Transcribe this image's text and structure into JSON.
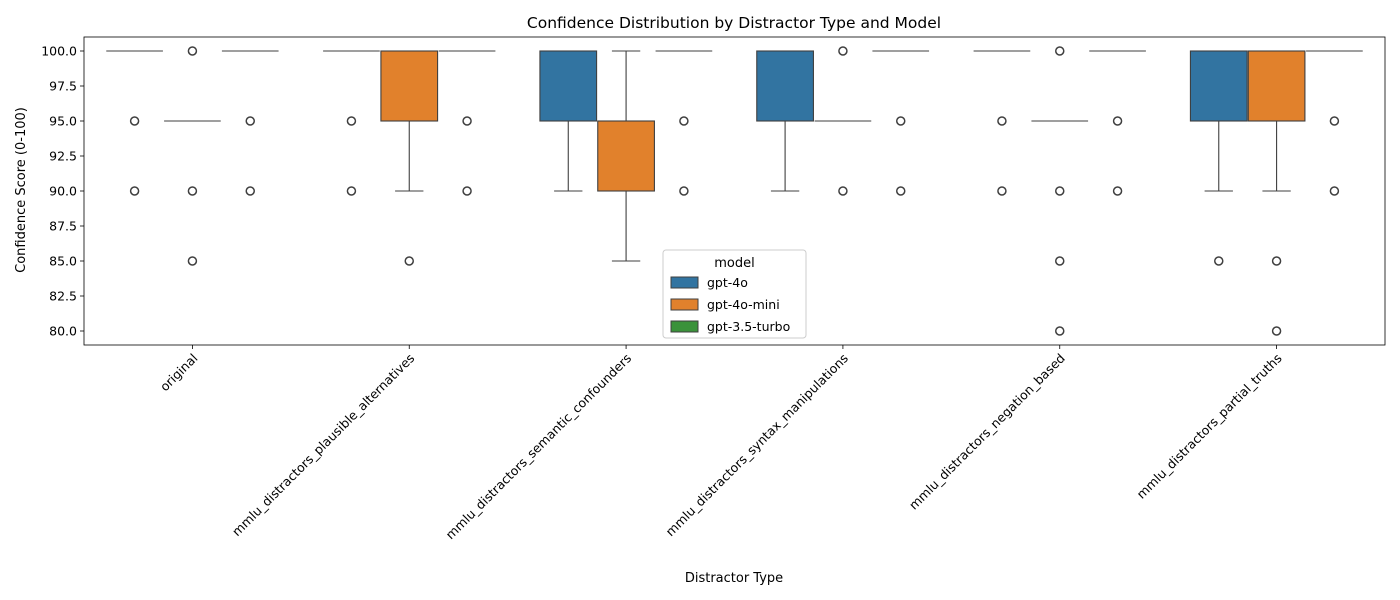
{
  "chart_data": {
    "type": "box",
    "title": "Confidence Distribution by Distractor Type and Model",
    "xlabel": "Distractor Type",
    "ylabel": "Confidence Score (0-100)",
    "ylim": [
      79.0,
      101.0
    ],
    "yticks": [
      "80.0",
      "82.5",
      "85.0",
      "87.5",
      "90.0",
      "92.5",
      "95.0",
      "97.5",
      "100.0"
    ],
    "ytick_values": [
      80.0,
      82.5,
      85.0,
      87.5,
      90.0,
      92.5,
      95.0,
      97.5,
      100.0
    ],
    "grid": false,
    "legend": {
      "title": "model",
      "placement": "bottom-center"
    },
    "categories": [
      "original",
      "mmlu_distractors_plausible_alternatives",
      "mmlu_distractors_semantic_confounders",
      "mmlu_distractors_syntax_manipulations",
      "mmlu_distractors_negation_based",
      "mmlu_distractors_partial_truths"
    ],
    "series": [
      {
        "name": "gpt-4o",
        "color": "#3274a1",
        "boxes": [
          {
            "q1": 100,
            "median": 100,
            "q3": 100,
            "whislo": 100,
            "whishi": 100,
            "fliers": [
              95,
              90
            ]
          },
          {
            "q1": 100,
            "median": 100,
            "q3": 100,
            "whislo": 100,
            "whishi": 100,
            "fliers": [
              95,
              90
            ]
          },
          {
            "q1": 95,
            "median": 100,
            "q3": 100,
            "whislo": 90,
            "whishi": 100,
            "fliers": []
          },
          {
            "q1": 95,
            "median": 100,
            "q3": 100,
            "whislo": 90,
            "whishi": 100,
            "fliers": []
          },
          {
            "q1": 100,
            "median": 100,
            "q3": 100,
            "whislo": 100,
            "whishi": 100,
            "fliers": [
              95,
              90
            ]
          },
          {
            "q1": 95,
            "median": 100,
            "q3": 100,
            "whislo": 90,
            "whishi": 100,
            "fliers": [
              85
            ]
          }
        ]
      },
      {
        "name": "gpt-4o-mini",
        "color": "#e1812c",
        "boxes": [
          {
            "q1": 95,
            "median": 95,
            "q3": 95,
            "whislo": 95,
            "whishi": 95,
            "fliers": [
              100,
              90,
              85
            ]
          },
          {
            "q1": 95,
            "median": 100,
            "q3": 100,
            "whislo": 90,
            "whishi": 100,
            "fliers": [
              85
            ]
          },
          {
            "q1": 90,
            "median": 95,
            "q3": 95,
            "whislo": 85,
            "whishi": 100,
            "fliers": []
          },
          {
            "q1": 95,
            "median": 95,
            "q3": 95,
            "whislo": 95,
            "whishi": 95,
            "fliers": [
              100,
              90
            ]
          },
          {
            "q1": 95,
            "median": 95,
            "q3": 95,
            "whislo": 95,
            "whishi": 95,
            "fliers": [
              100,
              90,
              85,
              80
            ]
          },
          {
            "q1": 95,
            "median": 100,
            "q3": 100,
            "whislo": 90,
            "whishi": 100,
            "fliers": [
              85,
              80
            ]
          }
        ]
      },
      {
        "name": "gpt-3.5-turbo",
        "color": "#3a923a",
        "boxes": [
          {
            "q1": 100,
            "median": 100,
            "q3": 100,
            "whislo": 100,
            "whishi": 100,
            "fliers": [
              95,
              90
            ]
          },
          {
            "q1": 100,
            "median": 100,
            "q3": 100,
            "whislo": 100,
            "whishi": 100,
            "fliers": [
              95,
              90
            ]
          },
          {
            "q1": 100,
            "median": 100,
            "q3": 100,
            "whislo": 100,
            "whishi": 100,
            "fliers": [
              95,
              90
            ]
          },
          {
            "q1": 100,
            "median": 100,
            "q3": 100,
            "whislo": 100,
            "whishi": 100,
            "fliers": [
              95,
              90
            ]
          },
          {
            "q1": 100,
            "median": 100,
            "q3": 100,
            "whislo": 100,
            "whishi": 100,
            "fliers": [
              95,
              90
            ]
          },
          {
            "q1": 100,
            "median": 100,
            "q3": 100,
            "whislo": 100,
            "whishi": 100,
            "fliers": [
              95,
              90
            ]
          }
        ]
      }
    ]
  }
}
